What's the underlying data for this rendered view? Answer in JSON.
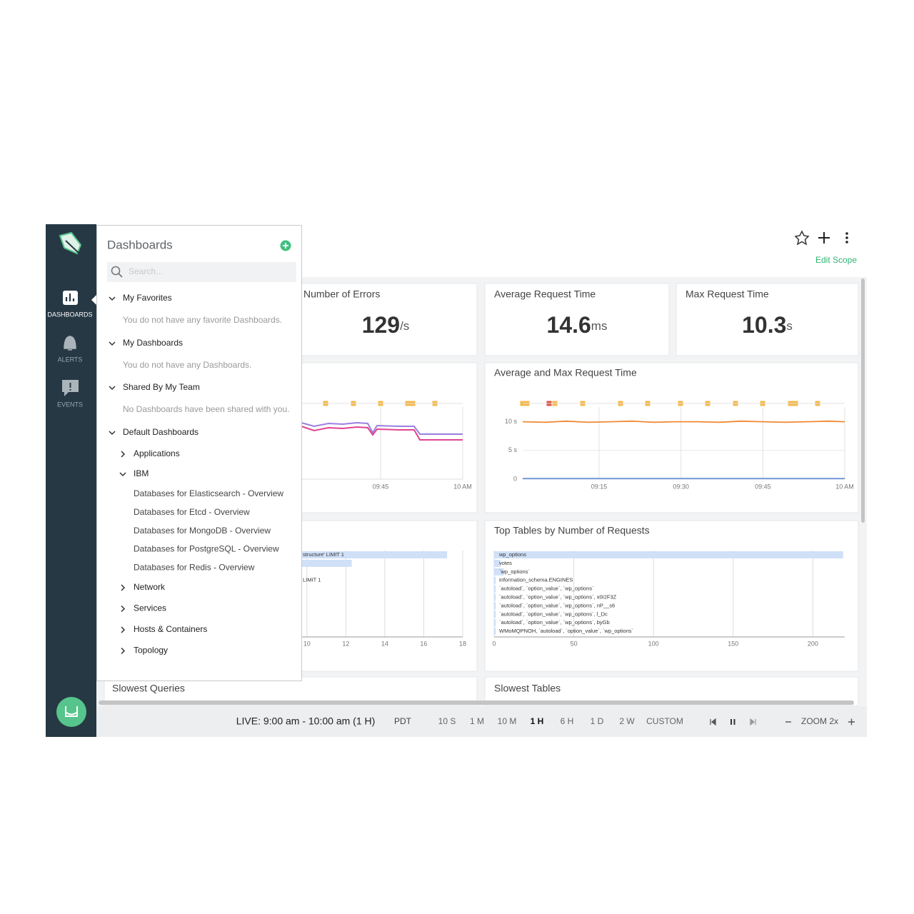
{
  "sidebar": {
    "nav": [
      "DASHBOARDS",
      "ALERTS",
      "EVENTS"
    ]
  },
  "panel": {
    "title": "Dashboards",
    "search_placeholder": "Search...",
    "sections": [
      {
        "title": "My Favorites",
        "empty": "You do not have any favorite Dashboards."
      },
      {
        "title": "My Dashboards",
        "empty": "You do not have any Dashboards."
      },
      {
        "title": "Shared By My Team",
        "empty": "No Dashboards have been shared with you."
      },
      {
        "title": "Default Dashboards",
        "groups": [
          {
            "title": "Applications"
          },
          {
            "title": "IBM",
            "items": [
              "Databases for Elasticsearch - Overview",
              "Databases for Etcd - Overview",
              "Databases for MongoDB - Overview",
              "Databases for PostgreSQL - Overview",
              "Databases for Redis - Overview"
            ]
          },
          {
            "title": "Network"
          },
          {
            "title": "Services"
          },
          {
            "title": "Hosts & Containers"
          },
          {
            "title": "Topology"
          }
        ]
      }
    ]
  },
  "header": {
    "edit_scope": "Edit Scope"
  },
  "tiles": [
    {
      "title": "Number of Errors",
      "value": 129,
      "unit": "/s"
    },
    {
      "title": "Average Request Time",
      "value": 14.6,
      "unit": "ms"
    },
    {
      "title": "Max Request Time",
      "value": 10.3,
      "unit": "s"
    }
  ],
  "charts": [
    {
      "type": "line",
      "xlim": [
        1,
        60
      ],
      "xticks": [
        {
          "value": 45,
          "label": "09:45"
        },
        {
          "value": 60,
          "label": "10 AM"
        }
      ]
    },
    {
      "type": "line",
      "title": "Average and Max Request Time",
      "x": [
        1,
        5,
        9,
        13,
        17,
        21,
        25,
        29,
        33,
        37,
        41,
        45,
        49,
        53,
        57,
        60
      ],
      "series": [
        {
          "color": "#f08a35",
          "values": [
            10.0,
            9.9,
            10.1,
            9.9,
            10.0,
            10.1,
            9.9,
            10.0,
            10.0,
            9.9,
            10.1,
            10.0,
            9.9,
            10.0,
            10.1,
            10.0
          ]
        },
        {
          "color": "#6f93d8",
          "values": [
            0.1,
            0.1,
            0.1,
            0.1,
            0.1,
            0.1,
            0.1,
            0.1,
            0.1,
            0.1,
            0.1,
            0.1,
            0.1,
            0.1,
            0.1,
            0.1
          ]
        }
      ],
      "xlim": [
        1,
        60
      ],
      "xticks": [
        {
          "value": 15,
          "label": "09:15"
        },
        {
          "value": 30,
          "label": "09:30"
        },
        {
          "value": 45,
          "label": "09:45"
        },
        {
          "value": 60,
          "label": "10 AM"
        }
      ],
      "ylim": [
        0,
        13.8
      ],
      "yticks": [
        {
          "value": 10,
          "label": "10 s"
        },
        {
          "value": 5,
          "label": "5 s"
        },
        0
      ],
      "grid": true
    },
    {
      "type": "bar",
      "orientation": "horizontal",
      "categories": [
        "structure' LIMIT 1",
        null,
        null,
        "LIMIT 1"
      ],
      "values": [
        17.2,
        12.3,
        null,
        null
      ],
      "color": "#cfe0f7",
      "xlim": [
        0,
        18
      ],
      "xticks": [
        10,
        12,
        14,
        16,
        18
      ],
      "grid": true
    },
    {
      "type": "bar",
      "orientation": "horizontal",
      "title": "Top Tables by Number of Requests",
      "categories": [
        "wp_options",
        "votes",
        "`wp_options`",
        "information_schema.ENGINES",
        "`autoload`, `option_value`, `wp_options`",
        "`autoload`, `option_value`, `wp_options`, x0I2F3Z",
        "`autoload`, `option_value`, `wp_options`, nP__s6",
        "`autoload`, `option_value`, `wp_options`, l_Dc",
        "`autoload`, `option_value`, `wp_options`, byGb",
        "WMoMQPNOH, `autoload`, `option_value`, `wp_options`"
      ],
      "values": [
        219,
        4,
        6,
        1,
        1,
        1,
        1,
        1,
        1,
        1
      ],
      "color": "#cfe0f7",
      "xlim": [
        0,
        220
      ],
      "xticks": [
        0,
        50,
        100,
        150,
        200
      ],
      "grid": true
    }
  ],
  "bottom_titles": [
    "Slowest Queries",
    "Slowest Tables"
  ],
  "timebar": {
    "live": "LIVE: 9:00 am - 10:00 am (1 H)",
    "timezone": "PDT",
    "ranges": [
      "10 S",
      "1 M",
      "10 M",
      "1 H",
      "6 H",
      "1 D",
      "2 W",
      "CUSTOM"
    ],
    "selected_range": 3,
    "zoom": "ZOOM 2x"
  }
}
